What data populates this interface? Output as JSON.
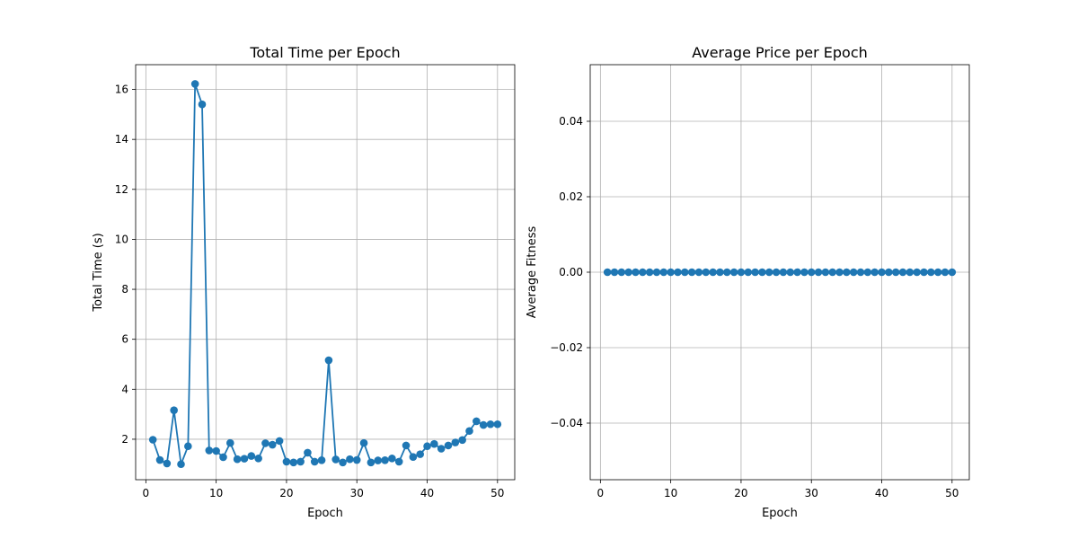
{
  "chart_data": [
    {
      "type": "line",
      "title": "Total Time per Epoch",
      "xlabel": "Epoch",
      "ylabel": "Total Time (s)",
      "xlim": [
        -1.45,
        52.45
      ],
      "ylim": [
        0.38,
        16.99
      ],
      "xticks": [
        0,
        10,
        20,
        30,
        40,
        50
      ],
      "yticks": [
        2,
        4,
        6,
        8,
        10,
        12,
        14,
        16
      ],
      "xtick_labels": [
        "0",
        "10",
        "20",
        "30",
        "40",
        "50"
      ],
      "ytick_labels": [
        "2",
        "4",
        "6",
        "8",
        "10",
        "12",
        "14",
        "16"
      ],
      "grid": true,
      "color": "#1f77b4",
      "marker": "circle",
      "x": [
        1,
        2,
        3,
        4,
        5,
        6,
        7,
        8,
        9,
        10,
        11,
        12,
        13,
        14,
        15,
        16,
        17,
        18,
        19,
        20,
        21,
        22,
        23,
        24,
        25,
        26,
        27,
        28,
        29,
        30,
        31,
        32,
        33,
        34,
        35,
        36,
        37,
        38,
        39,
        40,
        41,
        42,
        43,
        44,
        45,
        46,
        47,
        48,
        49,
        50
      ],
      "y": [
        1.98,
        1.17,
        1.03,
        3.16,
        1.0,
        1.72,
        16.22,
        15.4,
        1.55,
        1.53,
        1.28,
        1.85,
        1.2,
        1.22,
        1.33,
        1.23,
        1.84,
        1.78,
        1.93,
        1.1,
        1.07,
        1.1,
        1.46,
        1.1,
        1.16,
        5.16,
        1.19,
        1.07,
        1.2,
        1.17,
        1.85,
        1.07,
        1.15,
        1.16,
        1.23,
        1.1,
        1.75,
        1.29,
        1.4,
        1.72,
        1.81,
        1.62,
        1.75,
        1.87,
        1.97,
        2.33,
        2.72,
        2.57,
        2.6,
        2.6
      ]
    },
    {
      "type": "line",
      "title": "Average Price per Epoch",
      "xlabel": "Epoch",
      "ylabel": "Average Fitness",
      "xlim": [
        -1.45,
        52.45
      ],
      "ylim": [
        -0.055,
        0.055
      ],
      "xticks": [
        0,
        10,
        20,
        30,
        40,
        50
      ],
      "yticks": [
        -0.04,
        -0.02,
        0.0,
        0.02,
        0.04
      ],
      "xtick_labels": [
        "0",
        "10",
        "20",
        "30",
        "40",
        "50"
      ],
      "ytick_labels": [
        "−0.04",
        "−0.02",
        "0.00",
        "0.02",
        "0.04"
      ],
      "grid": true,
      "color": "#1f77b4",
      "marker": "circle",
      "x": [
        1,
        2,
        3,
        4,
        5,
        6,
        7,
        8,
        9,
        10,
        11,
        12,
        13,
        14,
        15,
        16,
        17,
        18,
        19,
        20,
        21,
        22,
        23,
        24,
        25,
        26,
        27,
        28,
        29,
        30,
        31,
        32,
        33,
        34,
        35,
        36,
        37,
        38,
        39,
        40,
        41,
        42,
        43,
        44,
        45,
        46,
        47,
        48,
        49,
        50
      ],
      "y": [
        0,
        0,
        0,
        0,
        0,
        0,
        0,
        0,
        0,
        0,
        0,
        0,
        0,
        0,
        0,
        0,
        0,
        0,
        0,
        0,
        0,
        0,
        0,
        0,
        0,
        0,
        0,
        0,
        0,
        0,
        0,
        0,
        0,
        0,
        0,
        0,
        0,
        0,
        0,
        0,
        0,
        0,
        0,
        0,
        0,
        0,
        0,
        0,
        0,
        0
      ]
    }
  ]
}
